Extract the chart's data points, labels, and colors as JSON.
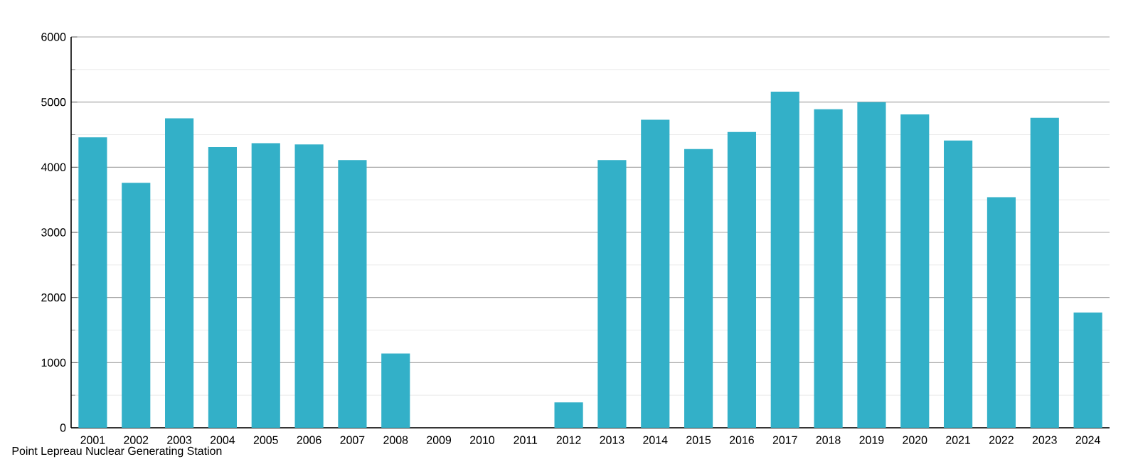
{
  "chart_data": {
    "type": "bar",
    "categories": [
      "2001",
      "2002",
      "2003",
      "2004",
      "2005",
      "2006",
      "2007",
      "2008",
      "2009",
      "2010",
      "2011",
      "2012",
      "2013",
      "2014",
      "2015",
      "2016",
      "2017",
      "2018",
      "2019",
      "2020",
      "2021",
      "2022",
      "2023",
      "2024"
    ],
    "values": [
      4460,
      3760,
      4750,
      4310,
      4370,
      4350,
      4110,
      1140,
      0,
      0,
      0,
      390,
      4110,
      4730,
      4280,
      4540,
      5160,
      4890,
      5000,
      4810,
      4410,
      3540,
      4760,
      1770
    ],
    "color": "#33b0c8",
    "ylim": [
      0,
      6000
    ],
    "yticks": [
      0,
      1000,
      2000,
      3000,
      4000,
      5000,
      6000
    ],
    "grid": "y",
    "annotations": [
      "Point Lepreau Nuclear Generating Station"
    ]
  }
}
